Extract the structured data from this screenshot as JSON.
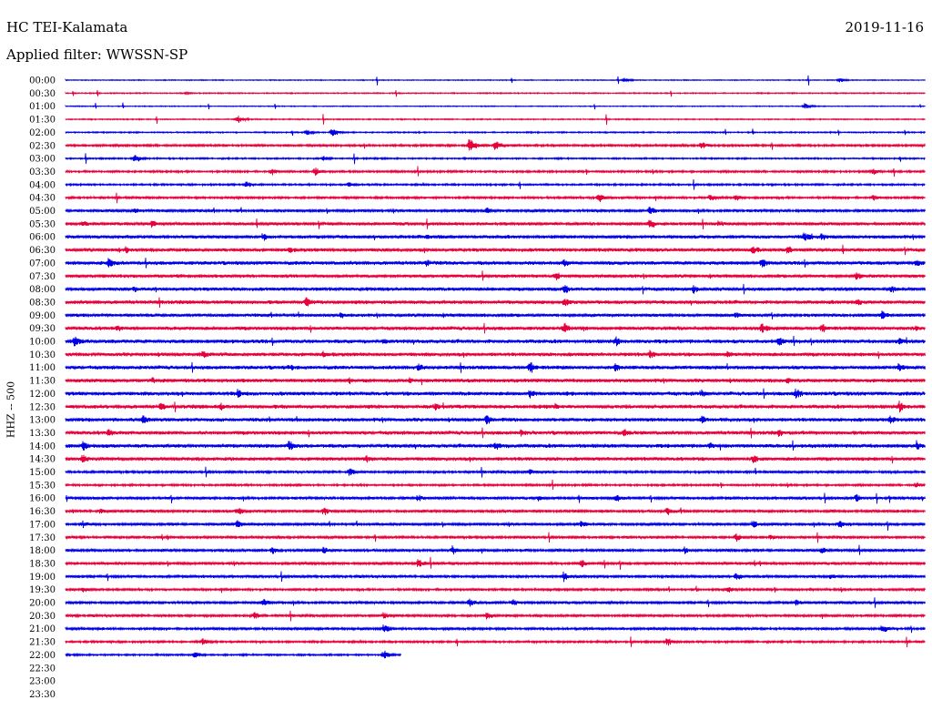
{
  "header": {
    "station": "HC TEI-Kalamata",
    "date": "2019-11-16",
    "filter": "Applied filter: WWSSN-SP"
  },
  "chart_data": {
    "type": "line",
    "title": "HC TEI-Kalamata",
    "ylabel": "HHZ -- 500",
    "row_times": [
      "00:00",
      "00:30",
      "01:00",
      "01:30",
      "02:00",
      "02:30",
      "03:00",
      "03:30",
      "04:00",
      "04:30",
      "05:00",
      "05:30",
      "06:00",
      "06:30",
      "07:00",
      "07:30",
      "08:00",
      "08:30",
      "09:00",
      "09:30",
      "10:00",
      "10:30",
      "11:00",
      "11:30",
      "12:00",
      "12:30",
      "13:00",
      "13:30",
      "14:00",
      "14:30",
      "15:00",
      "15:30",
      "16:00",
      "16:30",
      "17:00",
      "17:30",
      "18:00",
      "18:30",
      "19:00",
      "19:30",
      "20:00",
      "20:30",
      "21:00",
      "21:30",
      "22:00",
      "22:30",
      "23:00",
      "23:30"
    ],
    "colors": [
      "#0000e6",
      "#e6003c"
    ],
    "traces_recorded": 45,
    "last_trace_fraction": 0.39,
    "noise_level": [
      0.4,
      0.5,
      0.4,
      0.5,
      0.6,
      1.0,
      0.7,
      0.9,
      0.8,
      1.0,
      1.2,
      1.3,
      1.5,
      1.5,
      1.6,
      1.4,
      1.5,
      1.6,
      1.4,
      1.6,
      1.7,
      1.6,
      1.6,
      1.6,
      1.7,
      1.7,
      1.6,
      1.6,
      1.7,
      1.6,
      1.1,
      0.9,
      1.2,
      1.2,
      1.2,
      1.1,
      1.2,
      1.2,
      1.2,
      1.0,
      1.2,
      1.1,
      1.1,
      0.9,
      0.8
    ],
    "events": [
      [
        [
          0.65,
          3
        ],
        [
          0.9,
          3
        ]
      ],
      [
        [
          0.14,
          2
        ]
      ],
      [
        [
          0.86,
          4
        ]
      ],
      [
        [
          0.2,
          5
        ]
      ],
      [
        [
          0.28,
          4
        ],
        [
          0.31,
          6
        ]
      ],
      [
        [
          0.47,
          10
        ],
        [
          0.5,
          8
        ],
        [
          0.74,
          5
        ]
      ],
      [
        [
          0.08,
          6
        ],
        [
          0.3,
          4
        ]
      ],
      [
        [
          0.24,
          5
        ],
        [
          0.29,
          6
        ],
        [
          0.94,
          5
        ]
      ],
      [
        [
          0.21,
          5
        ],
        [
          0.33,
          4
        ]
      ],
      [
        [
          0.62,
          7
        ],
        [
          0.75,
          6
        ],
        [
          0.78,
          5
        ],
        [
          0.94,
          5
        ]
      ],
      [
        [
          0.08,
          4
        ],
        [
          0.49,
          5
        ],
        [
          0.68,
          6
        ]
      ],
      [
        [
          0.02,
          5
        ],
        [
          0.1,
          6
        ],
        [
          0.68,
          7
        ],
        [
          0.76,
          5
        ]
      ],
      [
        [
          0.23,
          6
        ],
        [
          0.42,
          5
        ],
        [
          0.86,
          8
        ],
        [
          0.88,
          6
        ]
      ],
      [
        [
          0.07,
          5
        ],
        [
          0.26,
          5
        ],
        [
          0.8,
          7
        ],
        [
          0.84,
          6
        ]
      ],
      [
        [
          0.05,
          8
        ],
        [
          0.42,
          5
        ],
        [
          0.58,
          6
        ],
        [
          0.81,
          7
        ],
        [
          0.99,
          6
        ]
      ],
      [
        [
          0.57,
          6
        ],
        [
          0.92,
          6
        ]
      ],
      [
        [
          0.08,
          5
        ],
        [
          0.58,
          7
        ],
        [
          0.73,
          6
        ],
        [
          0.96,
          6
        ]
      ],
      [
        [
          0.28,
          9
        ],
        [
          0.58,
          7
        ],
        [
          0.92,
          7
        ]
      ],
      [
        [
          0.32,
          5
        ],
        [
          0.78,
          6
        ],
        [
          0.95,
          7
        ]
      ],
      [
        [
          0.06,
          5
        ],
        [
          0.58,
          8
        ],
        [
          0.81,
          7
        ],
        [
          0.88,
          7
        ],
        [
          0.99,
          5
        ]
      ],
      [
        [
          0.01,
          8
        ],
        [
          0.37,
          5
        ],
        [
          0.64,
          7
        ],
        [
          0.83,
          7
        ],
        [
          0.97,
          6
        ]
      ],
      [
        [
          0.16,
          6
        ],
        [
          0.3,
          5
        ],
        [
          0.68,
          6
        ],
        [
          0.77,
          6
        ]
      ],
      [
        [
          0.26,
          5
        ],
        [
          0.41,
          6
        ],
        [
          0.54,
          9
        ],
        [
          0.64,
          6
        ],
        [
          0.97,
          7
        ]
      ],
      [
        [
          0.1,
          5
        ],
        [
          0.33,
          5
        ],
        [
          0.4,
          5
        ],
        [
          0.84,
          6
        ]
      ],
      [
        [
          0.2,
          6
        ],
        [
          0.54,
          6
        ],
        [
          0.74,
          6
        ],
        [
          0.85,
          8
        ]
      ],
      [
        [
          0.11,
          7
        ],
        [
          0.18,
          6
        ],
        [
          0.43,
          6
        ],
        [
          0.57,
          6
        ],
        [
          0.97,
          8
        ]
      ],
      [
        [
          0.09,
          7
        ],
        [
          0.49,
          7
        ],
        [
          0.74,
          6
        ],
        [
          0.96,
          7
        ]
      ],
      [
        [
          0.05,
          6
        ],
        [
          0.53,
          6
        ],
        [
          0.65,
          6
        ],
        [
          0.83,
          6
        ]
      ],
      [
        [
          0.02,
          7
        ],
        [
          0.26,
          8
        ],
        [
          0.5,
          6
        ],
        [
          0.75,
          6
        ],
        [
          0.99,
          7
        ]
      ],
      [
        [
          0.02,
          6
        ],
        [
          0.35,
          5
        ],
        [
          0.8,
          6
        ]
      ],
      [
        [
          0.33,
          6
        ],
        [
          0.54,
          5
        ]
      ],
      [
        [
          0.99,
          5
        ]
      ],
      [
        [
          0.41,
          5
        ],
        [
          0.55,
          5
        ],
        [
          0.64,
          6
        ],
        [
          0.92,
          6
        ]
      ],
      [
        [
          0.04,
          4
        ],
        [
          0.2,
          5
        ],
        [
          0.3,
          6
        ],
        [
          0.7,
          6
        ]
      ],
      [
        [
          0.02,
          5
        ],
        [
          0.2,
          6
        ],
        [
          0.6,
          5
        ],
        [
          0.8,
          6
        ],
        [
          0.9,
          6
        ]
      ],
      [
        [
          0.78,
          6
        ],
        [
          0.82,
          5
        ]
      ],
      [
        [
          0.24,
          5
        ],
        [
          0.3,
          5
        ],
        [
          0.45,
          6
        ],
        [
          0.72,
          5
        ],
        [
          0.88,
          5
        ]
      ],
      [
        [
          0.41,
          7
        ],
        [
          0.6,
          6
        ]
      ],
      [
        [
          0.58,
          5
        ],
        [
          0.78,
          6
        ],
        [
          0.89,
          5
        ]
      ],
      [
        [
          0.02,
          5
        ],
        [
          0.77,
          5
        ]
      ],
      [
        [
          0.23,
          6
        ],
        [
          0.47,
          6
        ],
        [
          0.52,
          5
        ],
        [
          0.85,
          5
        ]
      ],
      [
        [
          0.22,
          6
        ],
        [
          0.37,
          6
        ],
        [
          0.49,
          5
        ]
      ],
      [
        [
          0.37,
          6
        ],
        [
          0.95,
          6
        ]
      ],
      [
        [
          0.16,
          5
        ],
        [
          0.7,
          6
        ]
      ],
      [
        [
          0.15,
          5
        ],
        [
          0.37,
          6
        ]
      ]
    ]
  }
}
